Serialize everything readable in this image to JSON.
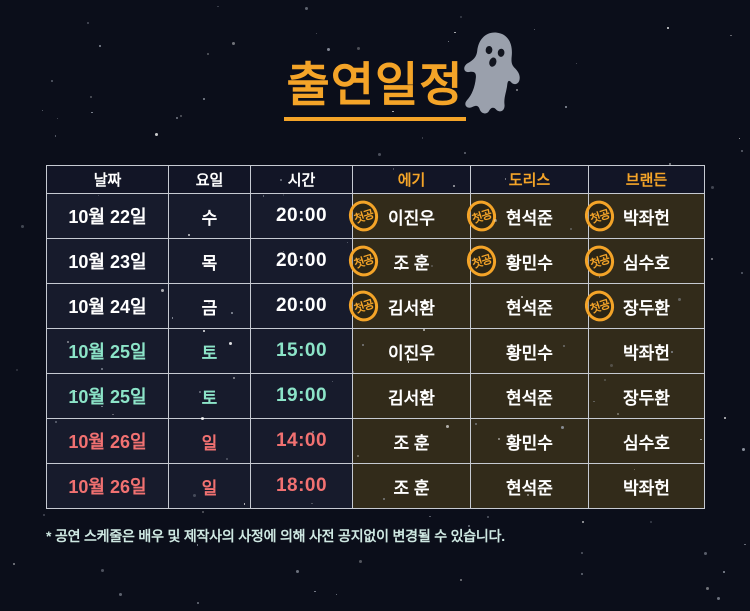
{
  "page": {
    "title": "출연일정",
    "footnote": "* 공연 스케줄은 배우 및 제작사의 사정에 의해 사전 공지없이 변경될 수 있습니다."
  },
  "colors": {
    "accent": "#F4A428",
    "saturday": "#8CE4C8",
    "sunday": "#F17171",
    "background": "#0B0E1A",
    "meta_bg": "#171B2C",
    "cast_bg": "#322B1A",
    "header_bg": "#121526",
    "border": "#C6CAD2",
    "footnote": "#CFE9E3",
    "ghost": "#9AA0AC",
    "text": "#FFFFFF"
  },
  "table": {
    "first_show_badge": "첫공",
    "headers": [
      {
        "label": "날짜",
        "type": "plain"
      },
      {
        "label": "요일",
        "type": "plain"
      },
      {
        "label": "시간",
        "type": "plain"
      },
      {
        "label": "에기",
        "type": "cast"
      },
      {
        "label": "도리스",
        "type": "cast"
      },
      {
        "label": "브랜든",
        "type": "cast"
      }
    ],
    "rows": [
      {
        "date": "10월 22일",
        "day": "수",
        "time": "20:00",
        "day_type": "weekday",
        "cast": [
          {
            "name": "이진우",
            "first": true
          },
          {
            "name": "현석준",
            "first": true
          },
          {
            "name": "박좌헌",
            "first": true
          }
        ]
      },
      {
        "date": "10월 23일",
        "day": "목",
        "time": "20:00",
        "day_type": "weekday",
        "cast": [
          {
            "name": "조 훈",
            "first": true
          },
          {
            "name": "황민수",
            "first": true
          },
          {
            "name": "심수호",
            "first": true
          }
        ]
      },
      {
        "date": "10월 24일",
        "day": "금",
        "time": "20:00",
        "day_type": "weekday",
        "cast": [
          {
            "name": "김서환",
            "first": true
          },
          {
            "name": "현석준",
            "first": false
          },
          {
            "name": "장두환",
            "first": true
          }
        ]
      },
      {
        "date": "10월 25일",
        "day": "토",
        "time": "15:00",
        "day_type": "saturday",
        "cast": [
          {
            "name": "이진우",
            "first": false
          },
          {
            "name": "황민수",
            "first": false
          },
          {
            "name": "박좌헌",
            "first": false
          }
        ]
      },
      {
        "date": "10월 25일",
        "day": "토",
        "time": "19:00",
        "day_type": "saturday",
        "cast": [
          {
            "name": "김서환",
            "first": false
          },
          {
            "name": "현석준",
            "first": false
          },
          {
            "name": "장두환",
            "first": false
          }
        ]
      },
      {
        "date": "10월 26일",
        "day": "일",
        "time": "14:00",
        "day_type": "sunday",
        "cast": [
          {
            "name": "조 훈",
            "first": false
          },
          {
            "name": "황민수",
            "first": false
          },
          {
            "name": "심수호",
            "first": false
          }
        ]
      },
      {
        "date": "10월 26일",
        "day": "일",
        "time": "18:00",
        "day_type": "sunday",
        "cast": [
          {
            "name": "조 훈",
            "first": false
          },
          {
            "name": "현석준",
            "first": false
          },
          {
            "name": "박좌헌",
            "first": false
          }
        ]
      }
    ]
  }
}
